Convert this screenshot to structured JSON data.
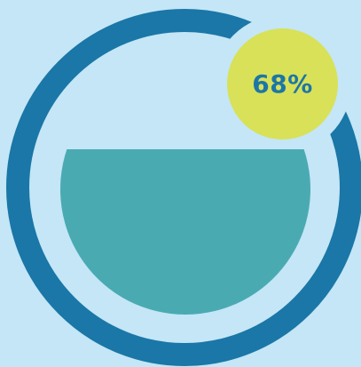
{
  "gauge": {
    "percent_label": "68%",
    "value": 0.68,
    "colors": {
      "background": "#c4e6f6",
      "ring": "#1a77a7",
      "fill": "#4aaab2",
      "badge": "#d8e158",
      "badge_text": "#1d76a6"
    }
  }
}
